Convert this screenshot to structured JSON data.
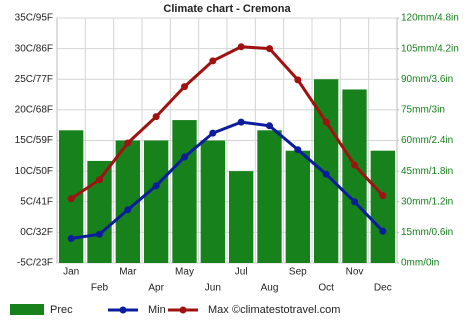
{
  "chart_data": {
    "type": "combo",
    "title": "Climate chart - Cremona",
    "categories": [
      "Jan",
      "Feb",
      "Mar",
      "Apr",
      "May",
      "Jun",
      "Jul",
      "Aug",
      "Sep",
      "Oct",
      "Nov",
      "Dec"
    ],
    "series": [
      {
        "name": "Prec",
        "type": "bar",
        "axis": "y2",
        "color": "#17821c",
        "values": [
          65,
          50,
          60,
          60,
          70,
          60,
          45,
          65,
          55,
          90,
          85,
          55
        ]
      },
      {
        "name": "Min",
        "type": "line",
        "color": "#0b1c9c",
        "values": [
          -1,
          -0.3,
          3.7,
          7.6,
          12.3,
          16.2,
          18,
          17.4,
          13.5,
          9.5,
          5,
          0.2
        ]
      },
      {
        "name": "Max",
        "type": "line",
        "color": "#a01212",
        "values": [
          5.5,
          8.6,
          14.6,
          18.9,
          23.8,
          28,
          30.3,
          30,
          24.9,
          18,
          11,
          6
        ]
      }
    ],
    "ylim": [
      -5,
      35
    ],
    "yticks": [
      {
        "value": -5,
        "label": "-5C/23F"
      },
      {
        "value": 0,
        "label": "0C/32F"
      },
      {
        "value": 5,
        "label": "5C/41F"
      },
      {
        "value": 10,
        "label": "10C/50F"
      },
      {
        "value": 15,
        "label": "15C/59F"
      },
      {
        "value": 20,
        "label": "20C/68F"
      },
      {
        "value": 25,
        "label": "25C/77F"
      },
      {
        "value": 30,
        "label": "30C/86F"
      },
      {
        "value": 35,
        "label": "35C/95F"
      }
    ],
    "y2lim": [
      0,
      120
    ],
    "y2ticks": [
      {
        "value": 0,
        "label": "0mm/0in"
      },
      {
        "value": 15,
        "label": "15mm/0.6in"
      },
      {
        "value": 30,
        "label": "30mm/1.2in"
      },
      {
        "value": 45,
        "label": "45mm/1.8in"
      },
      {
        "value": 60,
        "label": "60mm/2.4in"
      },
      {
        "value": 75,
        "label": "75mm/3in"
      },
      {
        "value": 90,
        "label": "90mm/3.6in"
      },
      {
        "value": 105,
        "label": "105mm/4.2in"
      },
      {
        "value": 120,
        "label": "120mm/4.8in"
      }
    ],
    "grid": true,
    "credit": "©climatestotravel.com"
  }
}
